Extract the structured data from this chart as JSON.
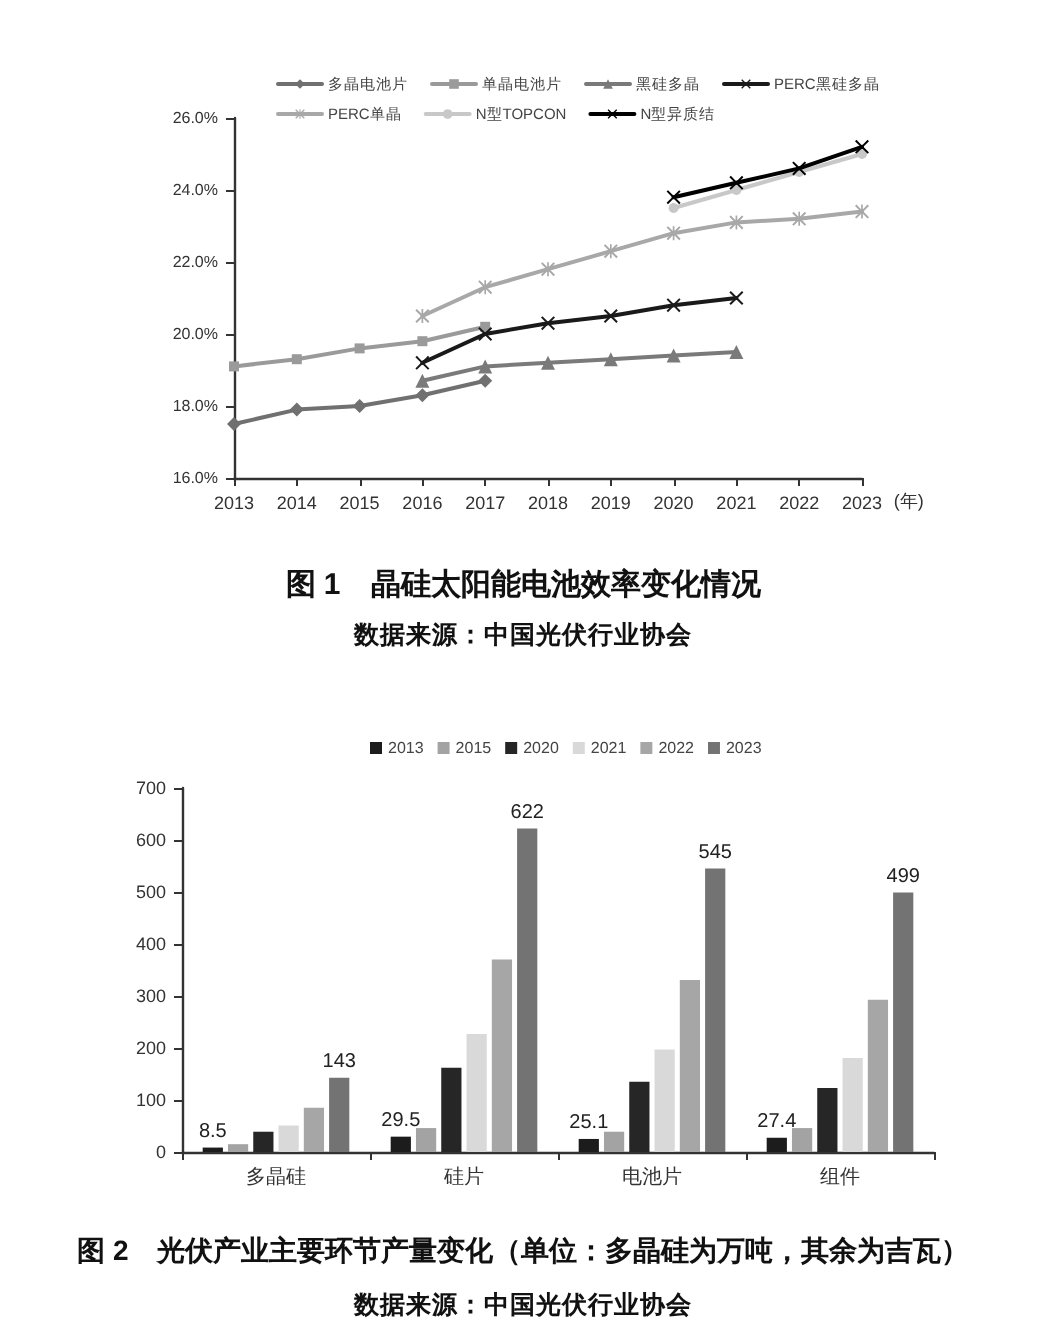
{
  "chart_data": [
    {
      "type": "line",
      "title": "图 1　晶硅太阳能电池效率变化情况",
      "annotations": [
        "数据来源：中国光伏行业协会"
      ],
      "categories": [
        "2013",
        "2014",
        "2015",
        "2016",
        "2017",
        "2018",
        "2019",
        "2020",
        "2021",
        "2022",
        "2023"
      ],
      "xlabel": "(年)",
      "ylim": [
        16,
        26
      ],
      "yticks": [
        {
          "value": 16,
          "label": "16.0%"
        },
        {
          "value": 18,
          "label": "18.0%"
        },
        {
          "value": 20,
          "label": "20.0%"
        },
        {
          "value": 22,
          "label": "22.0%"
        },
        {
          "value": 24,
          "label": "24.0%"
        },
        {
          "value": 26,
          "label": "26.0%"
        }
      ],
      "legend": "top",
      "series": [
        {
          "name": "多晶电池片",
          "color": "#707070",
          "marker": "diamond",
          "values": [
            17.5,
            17.9,
            18.0,
            18.3,
            18.7,
            null,
            null,
            null,
            null,
            null,
            null
          ]
        },
        {
          "name": "单晶电池片",
          "color": "#9a9a9a",
          "marker": "square",
          "values": [
            19.1,
            19.3,
            19.6,
            19.8,
            20.2,
            null,
            null,
            null,
            null,
            null,
            null
          ]
        },
        {
          "name": "黑硅多晶",
          "color": "#7a7a7a",
          "marker": "triangle",
          "values": [
            null,
            null,
            null,
            18.7,
            19.1,
            19.2,
            19.3,
            19.4,
            19.5,
            null,
            null
          ]
        },
        {
          "name": "PERC黑硅多晶",
          "color": "#1a1a1a",
          "marker": "cross",
          "values": [
            null,
            null,
            null,
            19.2,
            20.0,
            20.3,
            20.5,
            20.8,
            21.0,
            null,
            null
          ]
        },
        {
          "name": "PERC单晶",
          "color": "#a8a8a8",
          "marker": "star",
          "values": [
            null,
            null,
            null,
            20.5,
            21.3,
            21.8,
            22.3,
            22.8,
            23.1,
            23.2,
            23.4
          ]
        },
        {
          "name": "N型TOPCON",
          "color": "#c8c8c8",
          "marker": "circle",
          "values": [
            null,
            null,
            null,
            null,
            null,
            null,
            null,
            23.5,
            24.0,
            24.5,
            25.0
          ]
        },
        {
          "name": "N型异质结",
          "color": "#000000",
          "marker": "cross",
          "values": [
            null,
            null,
            null,
            null,
            null,
            null,
            null,
            23.8,
            24.2,
            24.6,
            25.2
          ]
        }
      ]
    },
    {
      "type": "bar",
      "title": "图 2　光伏产业主要环节产量变化（单位：多晶硅为万吨，其余为吉瓦）",
      "annotations": [
        "数据来源：中国光伏行业协会"
      ],
      "categories": [
        "多晶硅",
        "硅片",
        "电池片",
        "组件"
      ],
      "ylim": [
        0,
        700
      ],
      "yticks": [
        0,
        100,
        200,
        300,
        400,
        500,
        600,
        700
      ],
      "legend": "top",
      "series": [
        {
          "name": "2013",
          "color": "#1c1c1c",
          "values": [
            8.5,
            29.5,
            25.1,
            27.4
          ],
          "value_labels": [
            "8.5",
            "29.5",
            "25.1",
            "27.4"
          ]
        },
        {
          "name": "2015",
          "color": "#a3a3a3",
          "values": [
            15,
            46,
            39,
            46
          ]
        },
        {
          "name": "2020",
          "color": "#262626",
          "values": [
            39,
            162,
            135,
            123
          ]
        },
        {
          "name": "2021",
          "color": "#d9d9d9",
          "values": [
            51,
            227,
            197,
            181
          ]
        },
        {
          "name": "2022",
          "color": "#a6a6a6",
          "values": [
            85,
            370,
            331,
            293
          ]
        },
        {
          "name": "2023",
          "color": "#737373",
          "values": [
            143,
            622,
            545,
            499
          ],
          "value_labels": [
            "143",
            "622",
            "545",
            "499"
          ]
        }
      ]
    }
  ]
}
